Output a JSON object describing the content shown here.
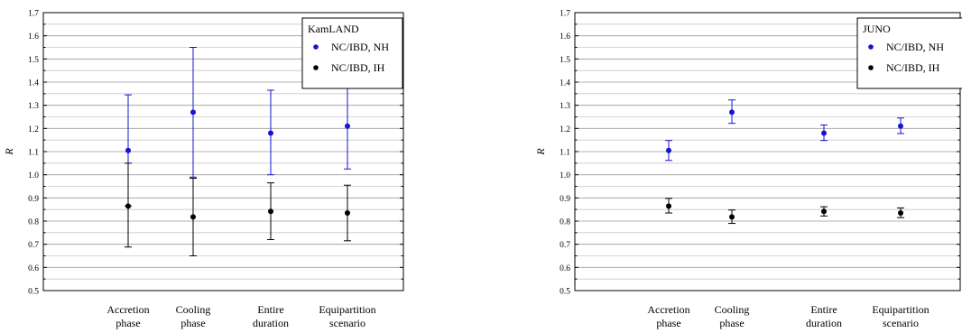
{
  "chart_data": [
    {
      "type": "scatter",
      "title": "",
      "xlabel": "",
      "ylabel": "R",
      "ylim": [
        0.5,
        1.7
      ],
      "yticks": [
        0.5,
        0.6,
        0.7,
        0.8,
        0.9,
        1.0,
        1.1,
        1.2,
        1.3,
        1.4,
        1.5,
        1.6,
        1.7
      ],
      "ytick_labels": [
        "0.5",
        "0.6",
        "0.7",
        "0.8",
        "0.9",
        "1.0",
        "1.1",
        "1.2",
        "1.3",
        "1.4",
        "1.5",
        "1.6",
        "1.7"
      ],
      "grid": true,
      "categories": [
        [
          "Accretion",
          "phase"
        ],
        [
          "Cooling",
          "phase"
        ],
        [
          "Entire",
          "duration"
        ],
        [
          "Equipartition",
          "scenario"
        ]
      ],
      "legend": {
        "title": "KamLAND",
        "placement": "top-right"
      },
      "series": [
        {
          "name": "NC/IBD, NH",
          "color": "#1414d2",
          "values": [
            1.105,
            1.27,
            1.18,
            1.21
          ],
          "err_low": [
            0.865,
            0.99,
            1.0,
            1.025
          ],
          "err_high": [
            1.345,
            1.55,
            1.365,
            1.395
          ]
        },
        {
          "name": "NC/IBD, IH",
          "color": "#000000",
          "values": [
            0.865,
            0.818,
            0.842,
            0.835
          ],
          "err_low": [
            0.688,
            0.65,
            0.72,
            0.715
          ],
          "err_high": [
            1.05,
            0.985,
            0.965,
            0.955
          ]
        }
      ]
    },
    {
      "type": "scatter",
      "title": "",
      "xlabel": "",
      "ylabel": "R",
      "ylim": [
        0.5,
        1.7
      ],
      "yticks": [
        0.5,
        0.6,
        0.7,
        0.8,
        0.9,
        1.0,
        1.1,
        1.2,
        1.3,
        1.4,
        1.5,
        1.6,
        1.7
      ],
      "ytick_labels": [
        "0.5",
        "0.6",
        "0.7",
        "0.8",
        "0.9",
        "1.0",
        "1.1",
        "1.2",
        "1.3",
        "1.4",
        "1.5",
        "1.6",
        "1.7"
      ],
      "grid": true,
      "categories": [
        [
          "Accretion",
          "phase"
        ],
        [
          "Cooling",
          "phase"
        ],
        [
          "Entire",
          "duration"
        ],
        [
          "Equipartition",
          "scenario"
        ]
      ],
      "legend": {
        "title": "JUNO",
        "placement": "top-right"
      },
      "series": [
        {
          "name": "NC/IBD, NH",
          "color": "#1414d2",
          "values": [
            1.105,
            1.27,
            1.18,
            1.21
          ],
          "err_low": [
            1.062,
            1.222,
            1.148,
            1.178
          ],
          "err_high": [
            1.148,
            1.323,
            1.215,
            1.245
          ]
        },
        {
          "name": "NC/IBD, IH",
          "color": "#000000",
          "values": [
            0.865,
            0.818,
            0.842,
            0.835
          ],
          "err_low": [
            0.835,
            0.79,
            0.822,
            0.815
          ],
          "err_high": [
            0.898,
            0.848,
            0.862,
            0.857
          ]
        }
      ]
    }
  ]
}
